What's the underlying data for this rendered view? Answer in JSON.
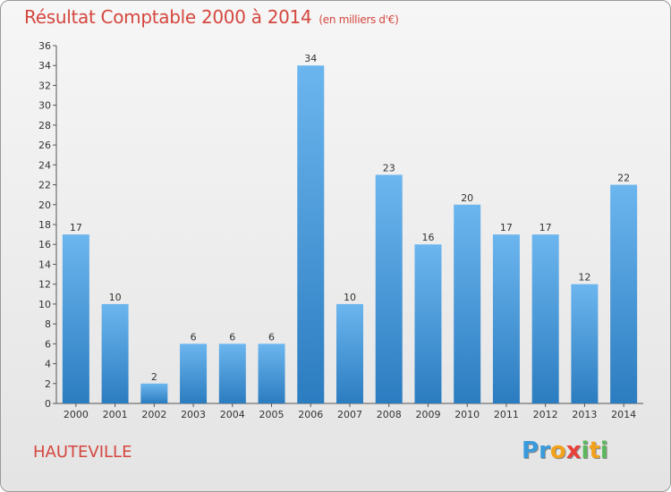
{
  "header": {
    "title": "Résultat Comptable 2000 à 2014",
    "subtitle": "(en milliers d'€)"
  },
  "footer": {
    "place": "HAUTEVILLE",
    "logo_letters": [
      {
        "char": "P",
        "color": "#3a9bdc"
      },
      {
        "char": "r",
        "color": "#3a9bdc"
      },
      {
        "char": "o",
        "color": "#f2a21b"
      },
      {
        "char": "x",
        "color": "#e8413a"
      },
      {
        "char": "i",
        "color": "#5cb85c"
      },
      {
        "char": "t",
        "color": "#f2a21b"
      },
      {
        "char": "i",
        "color": "#5cb85c"
      }
    ]
  },
  "chart_data": {
    "type": "bar",
    "title": "Résultat Comptable 2000 à 2014",
    "subtitle": "(en milliers d'€)",
    "categories": [
      "2000",
      "2001",
      "2002",
      "2003",
      "2004",
      "2005",
      "2006",
      "2007",
      "2008",
      "2009",
      "2010",
      "2011",
      "2012",
      "2013",
      "2014"
    ],
    "values": [
      17,
      10,
      2,
      6,
      6,
      6,
      34,
      10,
      23,
      16,
      20,
      17,
      17,
      12,
      22
    ],
    "data_labels": [
      "17",
      "10",
      "2",
      "6",
      "6",
      "6",
      "34",
      "10",
      "23",
      "16",
      "20",
      "17",
      "17",
      "12",
      "22"
    ],
    "ylim": [
      0,
      36
    ],
    "yticks": [
      "0",
      "2",
      "4",
      "6",
      "8",
      "10",
      "12",
      "14",
      "16",
      "18",
      "20",
      "22",
      "24",
      "26",
      "28",
      "30",
      "32",
      "34",
      "36"
    ],
    "grid": false,
    "bar_color": "#4a9ede",
    "bar_color_light": "#6cb6ef",
    "bar_color_dark": "#2b7cc0"
  }
}
